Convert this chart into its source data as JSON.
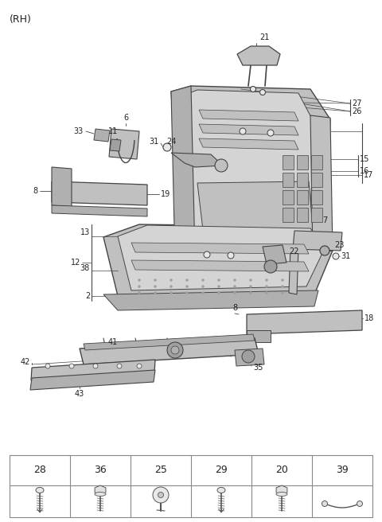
{
  "title": "(RH)",
  "bg_color": "#ffffff",
  "lc": "#444444",
  "tc": "#222222",
  "table_labels": [
    "28",
    "36",
    "25",
    "29",
    "20",
    "39"
  ],
  "fig_w": 4.8,
  "fig_h": 6.56,
  "dpi": 100
}
